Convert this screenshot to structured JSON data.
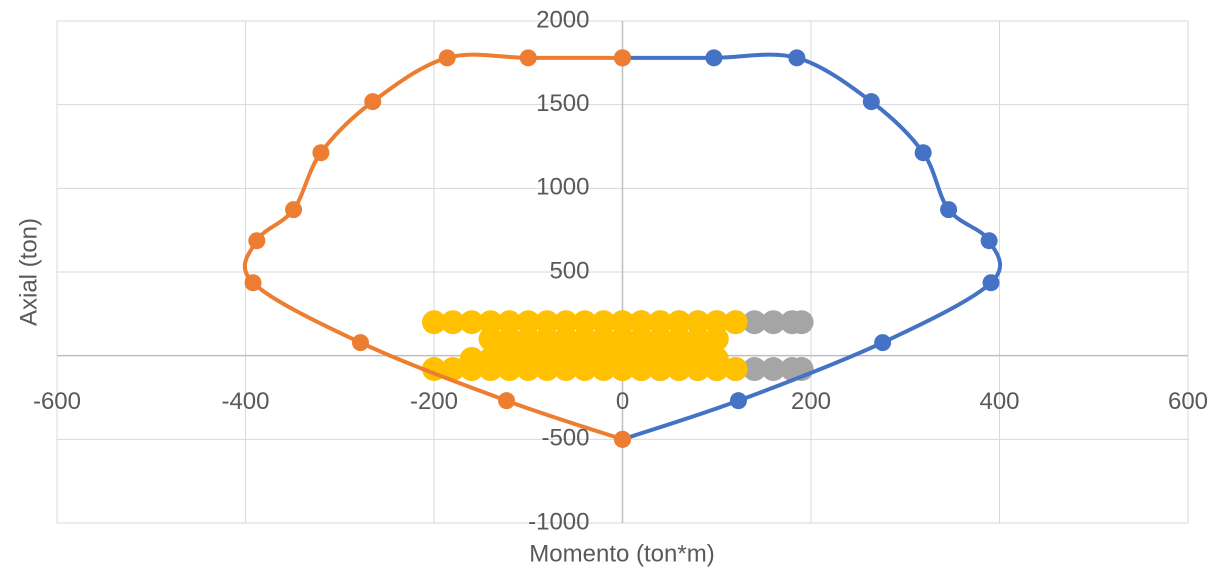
{
  "chart_data": {
    "type": "scatter",
    "x_label": "Momento (ton*m)",
    "y_label": "Axial (ton)",
    "xlim": [
      -600,
      600
    ],
    "xticks": [
      -600,
      -400,
      -200,
      0,
      200,
      400,
      600
    ],
    "ylim": [
      -1000,
      2000
    ],
    "yticks": [
      -1000,
      -500,
      0,
      500,
      1000,
      1500,
      2000
    ],
    "grid": true,
    "series": [
      {
        "color": "#a5a5a5",
        "line": false,
        "x": [
          0,
          20,
          40,
          60,
          80,
          100,
          120,
          140,
          160,
          180,
          190,
          0,
          20,
          40,
          60,
          80,
          100,
          120,
          140,
          160,
          180,
          190
        ],
        "values": [
          200,
          200,
          200,
          200,
          200,
          200,
          200,
          200,
          200,
          200,
          200,
          -80,
          -80,
          -80,
          -80,
          -80,
          -80,
          -80,
          -80,
          -80,
          -80,
          -80
        ]
      },
      {
        "color": "#ffc000",
        "line": false,
        "x": [
          -200,
          -180,
          -160,
          -140,
          -120,
          -100,
          -80,
          -60,
          -40,
          -20,
          0,
          20,
          40,
          60,
          80,
          100,
          120,
          -200,
          -180,
          -160,
          -140,
          -120,
          -100,
          -80,
          -60,
          -40,
          -20,
          0,
          20,
          40,
          60,
          80,
          100,
          120,
          -140,
          -120,
          -100,
          -80,
          -60,
          -40,
          -20,
          0,
          20,
          40,
          60,
          80,
          100,
          -120,
          -100,
          -80,
          -60,
          -40,
          -20,
          0,
          20,
          40,
          60,
          80,
          -160,
          -140,
          -120,
          -100,
          -80,
          -60,
          -40,
          -20,
          0,
          20,
          40,
          60,
          80,
          100
        ],
        "values": [
          200,
          200,
          200,
          200,
          200,
          200,
          200,
          200,
          200,
          200,
          200,
          200,
          200,
          200,
          200,
          200,
          200,
          -80,
          -80,
          -80,
          -80,
          -80,
          -80,
          -80,
          -80,
          -80,
          -80,
          -80,
          -80,
          -80,
          -80,
          -80,
          -80,
          -80,
          100,
          100,
          100,
          100,
          100,
          100,
          100,
          100,
          100,
          100,
          100,
          100,
          100,
          40,
          40,
          40,
          40,
          40,
          40,
          40,
          40,
          40,
          40,
          40,
          -20,
          -20,
          -20,
          -20,
          -20,
          -20,
          -20,
          -20,
          -20,
          -20,
          -20,
          -20,
          -20,
          -20
        ]
      },
      {
        "color": "#4472c4",
        "line": true,
        "x": [
          0,
          97,
          185,
          264,
          319,
          346,
          389,
          391,
          276,
          123,
          0
        ],
        "values": [
          1780,
          1780,
          1780,
          1518,
          1213,
          873,
          687,
          436,
          78,
          -269,
          -500
        ]
      },
      {
        "color": "#ed7d31",
        "line": true,
        "x": [
          0,
          -100,
          -186,
          -265,
          -320,
          -349,
          -388,
          -392,
          -278,
          -123,
          0
        ],
        "values": [
          1780,
          1780,
          1780,
          1518,
          1213,
          873,
          687,
          436,
          78,
          -269,
          -500
        ]
      }
    ]
  }
}
